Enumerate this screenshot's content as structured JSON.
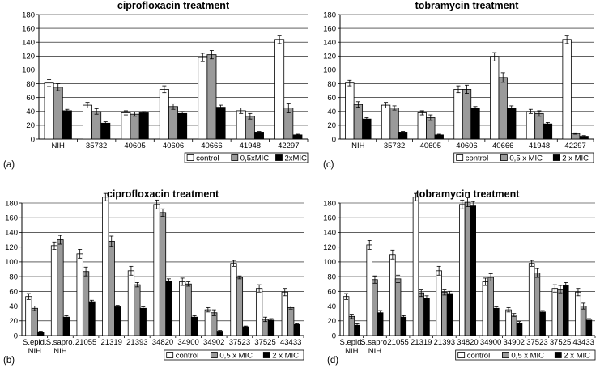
{
  "colors": {
    "control": "#ffffff",
    "mid": "#9a9a9a",
    "high": "#000000",
    "axis": "#000000",
    "grid": "#000000"
  },
  "chart_data": [
    {
      "type": "bar",
      "panel": "(a)",
      "title": "ciprofloxacin treatment",
      "ylim": [
        0,
        180
      ],
      "ystep": 20,
      "grid": true,
      "categories": [
        "NIH",
        "35732",
        "40605",
        "40606",
        "40666",
        "41948",
        "42297"
      ],
      "series": [
        {
          "name": "control",
          "values": [
            81,
            49,
            38,
            72,
            118,
            41,
            144
          ],
          "errors": [
            5,
            4,
            3,
            5,
            6,
            4,
            6
          ]
        },
        {
          "name": "0,5xMIC",
          "values": [
            75,
            40,
            36,
            47,
            122,
            33,
            45
          ],
          "errors": [
            5,
            4,
            3,
            4,
            6,
            4,
            7
          ]
        },
        {
          "name": "2xMIC",
          "values": [
            41,
            23,
            38,
            37,
            46,
            10,
            6
          ],
          "errors": [
            2,
            2,
            2,
            3,
            3,
            1,
            1
          ]
        }
      ],
      "legend_position": "bottom-right"
    },
    {
      "type": "bar",
      "panel": "(c)",
      "title": "tobramycin treatment",
      "ylim": [
        0,
        180
      ],
      "ystep": 20,
      "grid": true,
      "categories": [
        "NIH",
        "35732",
        "40605",
        "40606",
        "40666",
        "41948",
        "42297"
      ],
      "series": [
        {
          "name": "control",
          "values": [
            81,
            49,
            38,
            72,
            119,
            40,
            144
          ],
          "errors": [
            4,
            4,
            3,
            5,
            6,
            3,
            6
          ]
        },
        {
          "name": "0,5 x MIC",
          "values": [
            50,
            45,
            31,
            72,
            89,
            37,
            8
          ],
          "errors": [
            4,
            3,
            4,
            6,
            7,
            4,
            1
          ]
        },
        {
          "name": "2 x MIC",
          "values": [
            29,
            10,
            6,
            44,
            45,
            22,
            4
          ],
          "errors": [
            2,
            1,
            1,
            3,
            3,
            2,
            1
          ]
        }
      ],
      "legend_position": "bottom-right"
    },
    {
      "type": "bar",
      "panel": "(b)",
      "title": "ciprofloxacin treatment",
      "ylim": [
        0,
        180
      ],
      "ystep": 20,
      "grid": true,
      "categories": [
        "S.epid.\nNIH",
        "S.sapro.\nNIH",
        "21055",
        "21319",
        "21393",
        "34820",
        "34900",
        "34902",
        "37523",
        "37525",
        "43433"
      ],
      "series": [
        {
          "name": "control",
          "values": [
            53,
            122,
            111,
            188,
            88,
            178,
            73,
            35,
            98,
            64,
            59
          ],
          "errors": [
            4,
            5,
            6,
            5,
            6,
            6,
            5,
            3,
            4,
            5,
            5
          ]
        },
        {
          "name": "0,5 x MIC",
          "values": [
            37,
            130,
            87,
            128,
            69,
            167,
            70,
            31,
            79,
            22,
            38
          ],
          "errors": [
            3,
            6,
            6,
            7,
            3,
            5,
            3,
            4,
            2,
            3,
            2
          ]
        },
        {
          "name": "2 x MIC",
          "values": [
            5,
            25,
            46,
            39,
            37,
            74,
            25,
            6,
            12,
            21,
            15
          ],
          "errors": [
            1,
            2,
            2,
            2,
            2,
            3,
            2,
            1,
            1,
            2,
            1
          ]
        }
      ],
      "legend_position": "bottom-right"
    },
    {
      "type": "bar",
      "panel": "(d)",
      "title": "tobramycin treatment",
      "ylim": [
        0,
        180
      ],
      "ystep": 20,
      "grid": true,
      "categories": [
        "S.epid.\nNIH",
        "S.sapro.\nNIH",
        "21055",
        "21319",
        "21393",
        "34820",
        "34900",
        "34902",
        "37523",
        "37525",
        "43433"
      ],
      "series": [
        {
          "name": "control",
          "values": [
            53,
            123,
            110,
            188,
            88,
            178,
            73,
            35,
            98,
            64,
            59
          ],
          "errors": [
            4,
            6,
            6,
            5,
            6,
            6,
            5,
            3,
            4,
            5,
            5
          ]
        },
        {
          "name": "0,5 x MIC",
          "values": [
            26,
            76,
            77,
            58,
            59,
            181,
            79,
            28,
            85,
            63,
            40
          ],
          "errors": [
            3,
            5,
            5,
            5,
            4,
            6,
            5,
            2,
            6,
            5,
            4
          ]
        },
        {
          "name": "2 x MIC",
          "values": [
            14,
            31,
            25,
            51,
            57,
            176,
            37,
            17,
            32,
            68,
            21
          ],
          "errors": [
            2,
            3,
            2,
            3,
            3,
            6,
            2,
            2,
            2,
            4,
            2
          ]
        }
      ],
      "legend_position": "bottom-right"
    }
  ]
}
